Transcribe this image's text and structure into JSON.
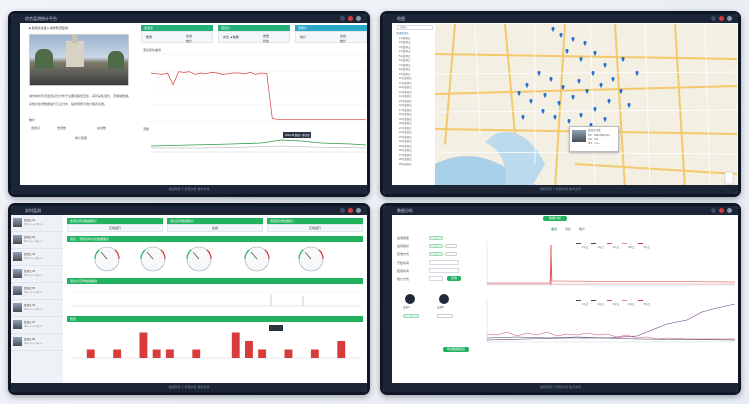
{
  "panel1": {
    "title": "综合监测统计平台",
    "footer": "版权所有 ©  智慧水务 技术支持",
    "image_caption": "",
    "desc_lines": [
      "城市排水防涝监测点位分布于主要道路低洼处，实时采集液位、流量等数据。",
      "系统对监测数据进行汇总分析，提供预警与统计报表功能。"
    ],
    "cards": [
      {
        "head": "监测点",
        "values": [
          "数量",
          "在线",
          "统计"
        ]
      },
      {
        "head": "液位计",
        "values": [
          "水位 ▲数据",
          "告警",
          "状态"
        ]
      },
      {
        "head": "流量计",
        "values": [
          "统计",
          "在线",
          "统计"
        ]
      }
    ],
    "stats_labels": [
      "监测点",
      "告警数",
      "在线数"
    ],
    "stats_sub": "统计结果",
    "chart_top_title": "液位变化曲线",
    "chart_bottom_title": "流量",
    "tooltip": "2020-08 数据 / 液位值"
  },
  "panel2": {
    "title": "地图",
    "footer": "版权所有 ©  智慧水务 技术支持",
    "search_placeholder": "请输入",
    "tree_items": [
      "全部监测点",
      "1号监测点",
      "2号监测点",
      "3号监测点",
      "4号监测点",
      "5号监测点",
      "6号监测点",
      "7号监测点",
      "8号监测点",
      "9号监测点",
      "10号监测点",
      "11号监测点",
      "12号监测点",
      "13号监测点",
      "14号监测点",
      "15号监测点",
      "16号监测点",
      "17号监测点",
      "18号监测点",
      "19号监测点",
      "20号监测点",
      "21号监测点",
      "22号监测点",
      "23号监测点",
      "24号监测点",
      "25号监测点",
      "26号监测点",
      "27号监测点",
      "28号监测点",
      "29号监测点"
    ],
    "popup_title": "监测点详情",
    "popup_lines": [
      "地址：某路与某街交叉口",
      "状态：在线",
      "液位：0.32m"
    ]
  },
  "panel3": {
    "title": "实时监测",
    "footer": "版权所有 ©  智慧水务 技术支持",
    "header_cards": [
      "监测点实时数据统计",
      "液位实时数据统计",
      "流量实时数据统计"
    ],
    "header_values": [
      "正常运行",
      "在线",
      "正常运行"
    ],
    "gauge_bar": "液位、流量实时仪表数据展示",
    "line_bar": "液位计实时数据曲线",
    "bar_bar": "告警",
    "list_items": [
      {
        "name": "监测点 01",
        "line": "液位 0.12 m  流量 3.2"
      },
      {
        "name": "监测点 02",
        "line": "液位 0.08 m  流量 2.1"
      },
      {
        "name": "监测点 03",
        "line": "液位 0.15 m  流量 4.0"
      },
      {
        "name": "监测点 04",
        "line": "液位 0.09 m  流量 1.7"
      },
      {
        "name": "监测点 05",
        "line": "液位 0.11 m  流量 2.9"
      },
      {
        "name": "监测点 06",
        "line": "液位 0.07 m  流量 1.2"
      },
      {
        "name": "监测点 07",
        "line": "液位 0.13 m  流量 3.6"
      },
      {
        "name": "监测点 08",
        "line": "液位 0.10 m  流量 2.4"
      }
    ]
  },
  "panel4": {
    "title": "数据分析",
    "footer": "版权所有 ©  智慧水务 技术支持",
    "tab_active": "数据分析",
    "tabs": [
      "曲线",
      "对比",
      "统计"
    ],
    "form_labels": [
      "监测类型",
      "监测指标",
      "查询方式",
      "开始时间",
      "结束时间",
      "统计方式"
    ],
    "query_button": "查询",
    "export_button": "导出数据报表",
    "legend_top": [
      "1号点",
      "2号点",
      "3号点",
      "4号点",
      "5号点"
    ],
    "legend_bottom": [
      "1号点",
      "2号点",
      "3号点",
      "4号点",
      "5号点"
    ],
    "device_labels": [
      "设备A",
      "设备B"
    ]
  },
  "colors": {
    "frame": "#0f1626",
    "bar": "#1b2536",
    "green": "#22b25f",
    "cyan": "#29a8c8",
    "red": "#d73b3b",
    "map_bg": "#f3efe3",
    "map_road": "#f3c96b",
    "map_water": "#a8cfe8"
  },
  "chart_data": [
    {
      "type": "line",
      "title": "",
      "series": [
        {
          "values": [
            72,
            71,
            70,
            72,
            55,
            74,
            73,
            74,
            70,
            72,
            71,
            73,
            72,
            70,
            71,
            72,
            72,
            71,
            73,
            70,
            72,
            71,
            5,
            4,
            4,
            4,
            4,
            4,
            4,
            4,
            4,
            4,
            4,
            4,
            4,
            4,
            4,
            4,
            4,
            4
          ]
        }
      ],
      "ylim": [
        0,
        100
      ]
    },
    {
      "type": "bar",
      "title": "",
      "series": [
        {
          "values": [
            0,
            1,
            0,
            1,
            0,
            3,
            1,
            1,
            0,
            1,
            0,
            0,
            3,
            2,
            1,
            0,
            1,
            0,
            1,
            0,
            2,
            0
          ]
        }
      ],
      "ylim": [
        0,
        4
      ]
    }
  ]
}
